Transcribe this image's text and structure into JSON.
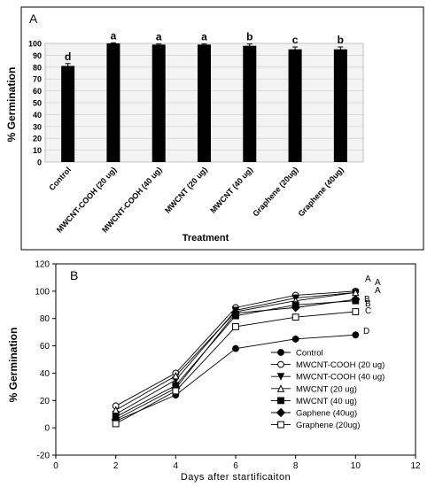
{
  "chart_data": [
    {
      "type": "bar",
      "panel_label": "A",
      "categories": [
        "Control",
        "MWCNT-COOH (20 ug)",
        "MWCNT-COOH (40 ug)",
        "MWCNT (20 ug)",
        "MWCNT (40 ug)",
        "Graphene (20ug)",
        "Graphene (40ug)"
      ],
      "values": [
        81,
        100,
        99,
        99,
        98,
        95,
        95
      ],
      "errors": [
        2,
        0.5,
        0.5,
        0.5,
        1.5,
        2,
        2
      ],
      "letters": [
        "d",
        "a",
        "a",
        "a",
        "b",
        "c",
        "b"
      ],
      "xlabel": "Treatment",
      "ylabel": "% Germination",
      "ylim": [
        0,
        100
      ],
      "yticks": [
        0,
        10,
        20,
        30,
        40,
        50,
        60,
        70,
        80,
        90,
        100
      ],
      "grid": true,
      "bar_color": "#000000"
    },
    {
      "type": "line",
      "panel_label": "B",
      "x": [
        2,
        4,
        6,
        8,
        10
      ],
      "xlabel": "Days after startificaiton",
      "ylabel": "% Germination",
      "xlim": [
        0,
        12
      ],
      "ylim": [
        -20,
        120
      ],
      "xticks": [
        0,
        2,
        4,
        6,
        8,
        10,
        12
      ],
      "yticks": [
        -20,
        0,
        20,
        40,
        60,
        80,
        100,
        120
      ],
      "legend_position": "lower-right",
      "series": [
        {
          "name": "Control",
          "marker": "circle-filled",
          "values": [
            5,
            24,
            58,
            65,
            68
          ],
          "end_letter": "D"
        },
        {
          "name": "MWCNT-COOH (20 ug)",
          "marker": "circle-open",
          "values": [
            16,
            40,
            88,
            97,
            100
          ],
          "end_letter": "A"
        },
        {
          "name": "MWCNT-COOH (40 ug)",
          "marker": "triangle-down-filled",
          "values": [
            10,
            35,
            86,
            95,
            99
          ],
          "end_letter": "A"
        },
        {
          "name": "MWCNT (20 ug)",
          "marker": "triangle-up-open",
          "values": [
            13,
            38,
            85,
            93,
            99
          ],
          "end_letter": "A"
        },
        {
          "name": "MWCNT (40 ug)",
          "marker": "square-filled",
          "values": [
            8,
            31,
            82,
            90,
            93
          ],
          "end_letter": "B"
        },
        {
          "name": "Gaphene (40ug)",
          "marker": "diamond-filled",
          "values": [
            6,
            29,
            84,
            88,
            94
          ],
          "end_letter": "B"
        },
        {
          "name": "Graphene (20ug)",
          "marker": "square-open",
          "values": [
            3,
            27,
            74,
            81,
            85
          ],
          "end_letter": "C"
        }
      ]
    }
  ]
}
